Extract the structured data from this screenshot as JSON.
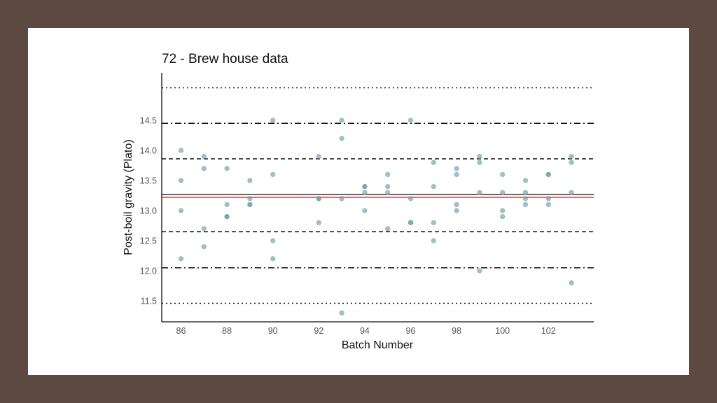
{
  "chart_data": {
    "type": "scatter",
    "title": "72 - Brew house data",
    "xlabel": "Batch Number",
    "ylabel": "Post-boil gravity (Plato)",
    "xlim": [
      85,
      104
    ],
    "ylim": [
      11.2,
      15.25
    ],
    "x_ticks": [
      86,
      88,
      90,
      92,
      94,
      96,
      98,
      100,
      102
    ],
    "x_tick_labels": [
      "86",
      "88",
      "90",
      "92",
      "94",
      "96",
      "98",
      "100",
      "102"
    ],
    "y_ticks": [
      11.5,
      12.0,
      12.5,
      13.0,
      13.5,
      14.0,
      14.5
    ],
    "y_tick_labels": [
      "11.5",
      "12.0",
      "12.5",
      "13.0",
      "13.5",
      "14.0",
      "14.5"
    ],
    "grid": false,
    "point_color": "#6a9fa7",
    "reference_lines": [
      {
        "role": "upper-outer",
        "y": 15.04,
        "style": "dotted",
        "color": "#111111"
      },
      {
        "role": "upper-middle",
        "y": 14.45,
        "style": "dashdot",
        "color": "#111111"
      },
      {
        "role": "upper-inner",
        "y": 13.86,
        "style": "dashed",
        "color": "#111111"
      },
      {
        "role": "mean",
        "y": 13.27,
        "style": "solid",
        "color": "#222222"
      },
      {
        "role": "median",
        "y": 13.22,
        "style": "solid",
        "color": "#e0322c"
      },
      {
        "role": "lower-inner",
        "y": 12.65,
        "style": "dashed",
        "color": "#111111"
      },
      {
        "role": "lower-middle",
        "y": 12.05,
        "style": "dashdot",
        "color": "#111111"
      },
      {
        "role": "lower-outer",
        "y": 11.46,
        "style": "dotted",
        "color": "#111111"
      }
    ],
    "points": [
      {
        "x": 86,
        "y": 14.0
      },
      {
        "x": 86,
        "y": 13.5
      },
      {
        "x": 86,
        "y": 13.0
      },
      {
        "x": 86,
        "y": 12.2
      },
      {
        "x": 87,
        "y": 13.9
      },
      {
        "x": 87,
        "y": 13.7
      },
      {
        "x": 87,
        "y": 12.7
      },
      {
        "x": 87,
        "y": 12.4
      },
      {
        "x": 88,
        "y": 13.7
      },
      {
        "x": 88,
        "y": 13.1
      },
      {
        "x": 88,
        "y": 12.9
      },
      {
        "x": 88,
        "y": 12.9
      },
      {
        "x": 89,
        "y": 13.5
      },
      {
        "x": 89,
        "y": 13.2
      },
      {
        "x": 89,
        "y": 13.1
      },
      {
        "x": 89,
        "y": 13.1
      },
      {
        "x": 90,
        "y": 14.5
      },
      {
        "x": 90,
        "y": 13.6
      },
      {
        "x": 90,
        "y": 12.5
      },
      {
        "x": 90,
        "y": 12.2
      },
      {
        "x": 92,
        "y": 13.9
      },
      {
        "x": 92,
        "y": 13.2
      },
      {
        "x": 92,
        "y": 13.2
      },
      {
        "x": 92,
        "y": 12.8
      },
      {
        "x": 93,
        "y": 14.5
      },
      {
        "x": 93,
        "y": 14.2
      },
      {
        "x": 93,
        "y": 13.2
      },
      {
        "x": 93,
        "y": 11.3
      },
      {
        "x": 94,
        "y": 13.4
      },
      {
        "x": 94,
        "y": 13.4
      },
      {
        "x": 94,
        "y": 13.3
      },
      {
        "x": 94,
        "y": 13.0
      },
      {
        "x": 95,
        "y": 13.6
      },
      {
        "x": 95,
        "y": 13.4
      },
      {
        "x": 95,
        "y": 13.3
      },
      {
        "x": 95,
        "y": 12.7
      },
      {
        "x": 96,
        "y": 14.5
      },
      {
        "x": 96,
        "y": 13.2
      },
      {
        "x": 96,
        "y": 12.8
      },
      {
        "x": 96,
        "y": 12.8
      },
      {
        "x": 97,
        "y": 13.8
      },
      {
        "x": 97,
        "y": 13.4
      },
      {
        "x": 97,
        "y": 12.8
      },
      {
        "x": 97,
        "y": 12.5
      },
      {
        "x": 98,
        "y": 13.7
      },
      {
        "x": 98,
        "y": 13.6
      },
      {
        "x": 98,
        "y": 13.1
      },
      {
        "x": 98,
        "y": 13.0
      },
      {
        "x": 99,
        "y": 13.9
      },
      {
        "x": 99,
        "y": 13.8
      },
      {
        "x": 99,
        "y": 13.3
      },
      {
        "x": 99,
        "y": 12.0
      },
      {
        "x": 100,
        "y": 13.6
      },
      {
        "x": 100,
        "y": 13.3
      },
      {
        "x": 100,
        "y": 13.0
      },
      {
        "x": 100,
        "y": 12.9
      },
      {
        "x": 101,
        "y": 13.5
      },
      {
        "x": 101,
        "y": 13.3
      },
      {
        "x": 101,
        "y": 13.2
      },
      {
        "x": 101,
        "y": 13.1
      },
      {
        "x": 102,
        "y": 13.6
      },
      {
        "x": 102,
        "y": 13.6
      },
      {
        "x": 102,
        "y": 13.2
      },
      {
        "x": 102,
        "y": 13.1
      },
      {
        "x": 103,
        "y": 13.9
      },
      {
        "x": 103,
        "y": 13.8
      },
      {
        "x": 103,
        "y": 13.3
      },
      {
        "x": 103,
        "y": 11.8
      }
    ]
  }
}
